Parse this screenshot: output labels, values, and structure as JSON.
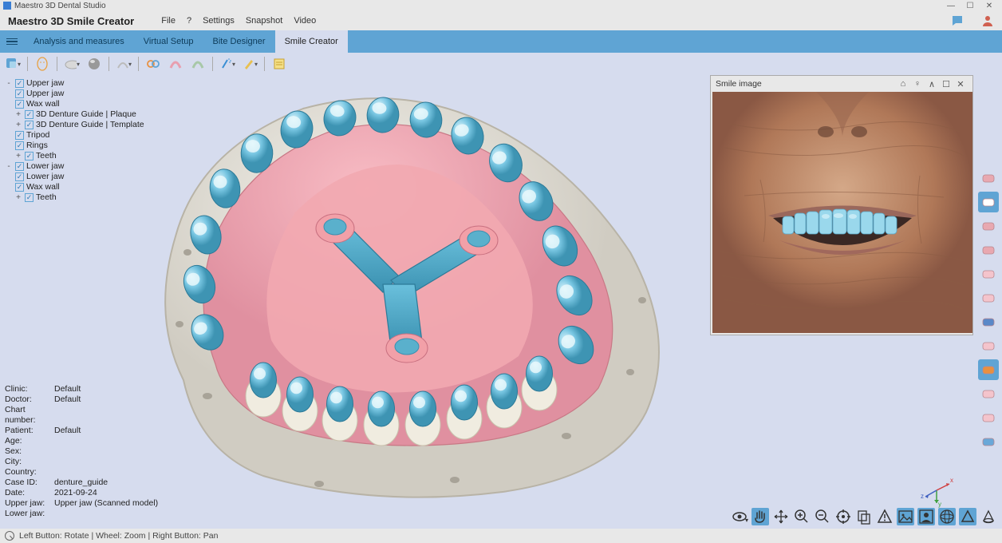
{
  "window": {
    "title": "Maestro 3D Dental Studio"
  },
  "app_name": "Maestro 3D Smile Creator",
  "menu": [
    "File",
    "?",
    "Settings",
    "Snapshot",
    "Video"
  ],
  "tabs": [
    {
      "label": "Analysis and measures",
      "active": false
    },
    {
      "label": "Virtual Setup",
      "active": false
    },
    {
      "label": "Bite Designer",
      "active": false
    },
    {
      "label": "Smile Creator",
      "active": true
    }
  ],
  "toolbar_icons": [
    {
      "name": "select-tool",
      "color": "#3a8fd4",
      "shape": "square"
    },
    {
      "name": "cursor-tool",
      "color": "#888",
      "shape": "arrow"
    },
    {
      "name": "face-tool",
      "color": "#e8a040",
      "shape": "face"
    },
    {
      "name": "cloud-tool",
      "color": "#ccc",
      "shape": "cloud"
    },
    {
      "name": "ball-tool",
      "color": "#888",
      "shape": "ball"
    },
    {
      "name": "arc-tool",
      "color": "#bbb",
      "shape": "arc"
    },
    {
      "name": "link-tool",
      "color": "#e89040",
      "shape": "link"
    },
    {
      "name": "arch1-tool",
      "color": "#e89faf",
      "shape": "arch"
    },
    {
      "name": "arch2-tool",
      "color": "#a8c8a8",
      "shape": "arch"
    },
    {
      "name": "spray-tool",
      "color": "#3a8fd4",
      "shape": "spray"
    },
    {
      "name": "pencil-tool",
      "color": "#d8c060",
      "shape": "pencil"
    },
    {
      "name": "note-tool",
      "color": "#e8c050",
      "shape": "note"
    }
  ],
  "tree": [
    {
      "expand": "-",
      "indent": 0,
      "checked": true,
      "label": "Upper jaw"
    },
    {
      "expand": "",
      "indent": 0,
      "checked": true,
      "label": "Upper jaw"
    },
    {
      "expand": "",
      "indent": 0,
      "checked": true,
      "label": "Wax wall"
    },
    {
      "expand": "+",
      "indent": 1,
      "checked": true,
      "label": "3D Denture Guide | Plaque"
    },
    {
      "expand": "+",
      "indent": 1,
      "checked": true,
      "label": "3D Denture Guide | Template"
    },
    {
      "expand": "",
      "indent": 0,
      "checked": true,
      "label": "Tripod"
    },
    {
      "expand": "",
      "indent": 0,
      "checked": true,
      "label": "Rings"
    },
    {
      "expand": "+",
      "indent": 1,
      "checked": true,
      "label": "Teeth"
    },
    {
      "expand": "-",
      "indent": 0,
      "checked": true,
      "label": "Lower jaw"
    },
    {
      "expand": "",
      "indent": 0,
      "checked": true,
      "label": "Lower jaw"
    },
    {
      "expand": "",
      "indent": 0,
      "checked": true,
      "label": "Wax wall"
    },
    {
      "expand": "+",
      "indent": 1,
      "checked": true,
      "label": "Teeth"
    }
  ],
  "info": [
    {
      "label": "Clinic:",
      "value": "Default"
    },
    {
      "label": "Doctor:",
      "value": "Default"
    },
    {
      "label": "Chart number:",
      "value": ""
    },
    {
      "label": "Patient:",
      "value": "Default"
    },
    {
      "label": "Age:",
      "value": ""
    },
    {
      "label": "Sex:",
      "value": ""
    },
    {
      "label": "City:",
      "value": ""
    },
    {
      "label": "Country:",
      "value": ""
    },
    {
      "label": "Case ID:",
      "value": "denture_guide"
    },
    {
      "label": "Date:",
      "value": "2021-09-24"
    },
    {
      "label": "Upper jaw:",
      "value": "Upper jaw (Scanned model)"
    },
    {
      "label": "Lower jaw:",
      "value": ""
    }
  ],
  "status_text": "Left Button: Rotate | Wheel: Zoom | Right Button: Pan",
  "smile_panel": {
    "title": "Smile image"
  },
  "right_strip": [
    {
      "name": "teeth-row-icon",
      "active": false,
      "color": "#e8a8b0"
    },
    {
      "name": "teeth-row2-icon",
      "active": true,
      "color": "#fff"
    },
    {
      "name": "teeth-slice-icon",
      "active": false,
      "color": "#e8a8b0"
    },
    {
      "name": "teeth-grid-icon",
      "active": false,
      "color": "#e8a8b0"
    },
    {
      "name": "heart-icon",
      "active": false,
      "color": "#f4c4cc"
    },
    {
      "name": "cloud-icon",
      "active": false,
      "color": "#f4c4cc"
    },
    {
      "name": "magnet-icon",
      "active": false,
      "color": "#5a88c8"
    },
    {
      "name": "drop-icon",
      "active": false,
      "color": "#f4c4cc"
    },
    {
      "name": "jaw-icon",
      "active": true,
      "color": "#e89040"
    },
    {
      "name": "jaw2-icon",
      "active": false,
      "color": "#f4c4cc"
    },
    {
      "name": "hourglass-icon",
      "active": false,
      "color": "#f4c4cc"
    },
    {
      "name": "grid4-icon",
      "active": false,
      "color": "#6aa8d8"
    }
  ],
  "bottom_strip": [
    {
      "name": "eye-icon",
      "svg": "eye"
    },
    {
      "name": "hand-icon",
      "svg": "hand",
      "hl": true
    },
    {
      "name": "move-icon",
      "svg": "move"
    },
    {
      "name": "zoom-in-icon",
      "svg": "zoomin"
    },
    {
      "name": "zoom-out-icon",
      "svg": "zoomout"
    },
    {
      "name": "target-icon",
      "svg": "target"
    },
    {
      "name": "copy-icon",
      "svg": "copy"
    },
    {
      "name": "warn-icon",
      "svg": "warn"
    },
    {
      "name": "image-icon",
      "svg": "image",
      "hl": true
    },
    {
      "name": "person-icon",
      "svg": "person",
      "hl": true
    },
    {
      "name": "globe-icon",
      "svg": "globe",
      "hl": true
    },
    {
      "name": "tri-icon",
      "svg": "tri",
      "hl": true
    },
    {
      "name": "cone-icon",
      "svg": "cone"
    }
  ],
  "axis": {
    "x_color": "#d04040",
    "y_color": "#40a040",
    "z_color": "#4060c0",
    "x": "x",
    "y": "y",
    "z": "z"
  },
  "palette": {
    "tooth_blue": "#72c3e0",
    "tooth_blue_hl": "#c8edf6",
    "tooth_blue_sh": "#3e94b3",
    "gum_pink": "#f2a8b0",
    "gum_pink_sh": "#d8858f",
    "plaster": "#e8e5de",
    "plaster_sh": "#c8c3b8",
    "tripod": "#4aa8c8",
    "ring": "#f2a0a8",
    "skin": "#b88868",
    "skin_sh": "#8a5c44",
    "skin_hl": "#d4a888",
    "lip": "#a0685c"
  }
}
